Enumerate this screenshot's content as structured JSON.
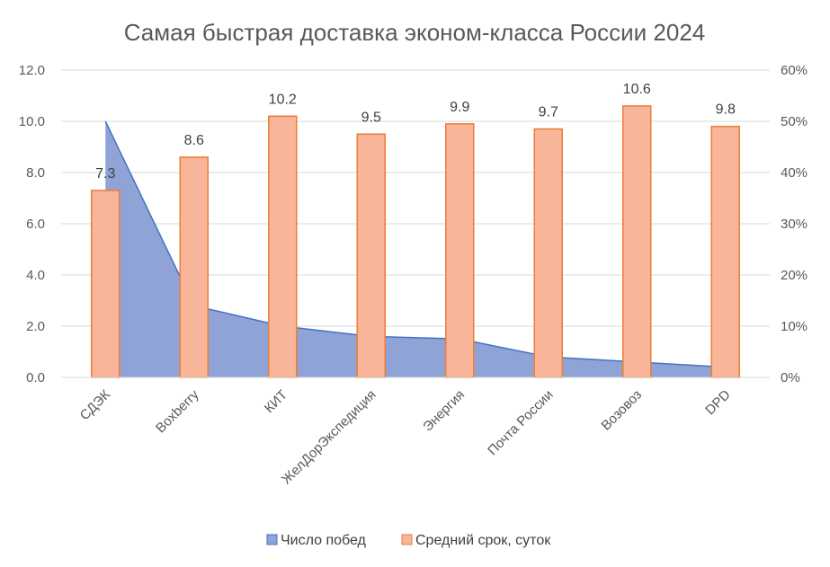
{
  "chart_data": {
    "type": "bar",
    "title": "Самая быстрая доставка эконом-класса России 2024",
    "categories": [
      "СДЭК",
      "Boxberry",
      "КИТ",
      "ЖелДорЭкспедиция",
      "Энергия",
      "Почта России",
      "Возовоз",
      "DPD"
    ],
    "series": [
      {
        "name": "Число побед",
        "type": "area",
        "axis": "right",
        "unit": "percent",
        "values": [
          50,
          14,
          10,
          8,
          7.5,
          4,
          3,
          2
        ],
        "color": "#8FA3D6",
        "line_color": "#4472C4"
      },
      {
        "name": "Средний срок, суток",
        "type": "bar",
        "axis": "left",
        "values": [
          7.3,
          8.6,
          10.2,
          9.5,
          9.9,
          9.7,
          10.6,
          9.8
        ],
        "data_labels": [
          "7.3",
          "8.6",
          "10.2",
          "9.5",
          "9.9",
          "9.7",
          "10.6",
          "9.8"
        ],
        "color": "#F8B59A",
        "line_color": "#ED7D31"
      }
    ],
    "y_left": {
      "min": 0,
      "max": 12,
      "ticks": [
        "0.0",
        "2.0",
        "4.0",
        "6.0",
        "8.0",
        "10.0",
        "12.0"
      ]
    },
    "y_right": {
      "min": 0,
      "max": 60,
      "ticks": [
        "0%",
        "10%",
        "20%",
        "30%",
        "40%",
        "50%",
        "60%"
      ]
    },
    "grid": true,
    "legend_position": "bottom"
  }
}
